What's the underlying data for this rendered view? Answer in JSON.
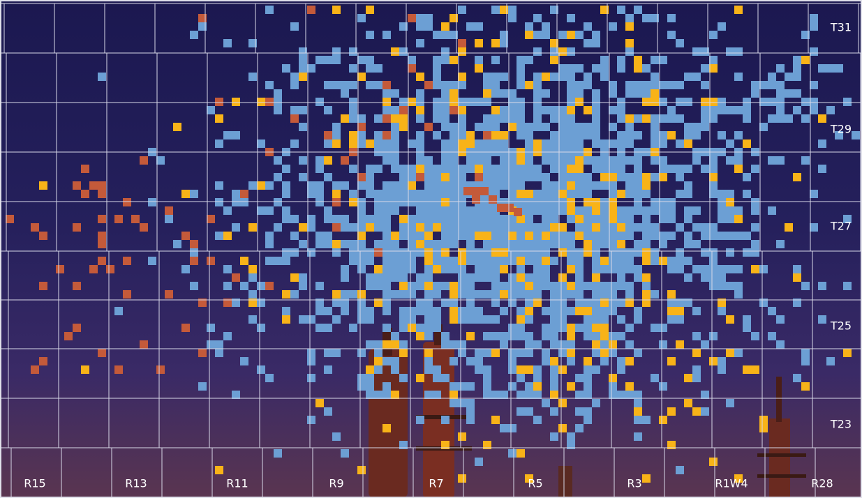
{
  "township_labels": [
    "T31",
    "T29",
    "T27",
    "T25",
    "T23"
  ],
  "range_labels": [
    "R15",
    "R13",
    "R11",
    "R9",
    "R7",
    "R5",
    "R3",
    "R1W4",
    "R28"
  ]
}
